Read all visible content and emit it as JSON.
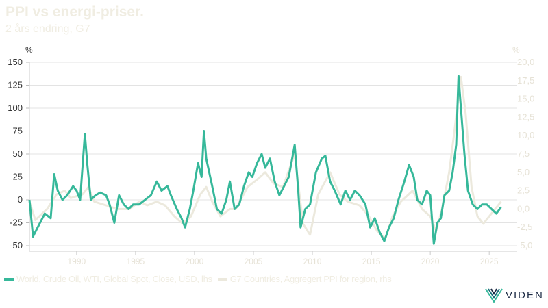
{
  "chart_data": {
    "type": "line",
    "title": "PPI vs energi-priser.",
    "subtitle": "2 års endring, G7",
    "ylabel_left": "%",
    "ylabel_right": "%",
    "ylim_left": [
      -50,
      150
    ],
    "ylim_right": [
      -5,
      20
    ],
    "xlim": [
      1986,
      2026.5
    ],
    "left_ticks": [
      "150",
      "125",
      "100",
      "75",
      "50",
      "25",
      "0",
      "-25",
      "-50"
    ],
    "right_ticks": [
      "20,0",
      "17,5",
      "15,0",
      "12,5",
      "10,0",
      "7,5",
      "5,0",
      "2,5",
      "0,0",
      "-2,5",
      "-5,0"
    ],
    "x_ticks": [
      "1990",
      "1995",
      "2000",
      "2005",
      "2010",
      "2015",
      "2020",
      "2025"
    ],
    "grid": true,
    "legend_position": "bottom",
    "colors": {
      "oil": "#36b89a",
      "ppi": "#ece9dd"
    },
    "series": [
      {
        "name": "World, Crude Oil, WTI, Global Spot, Close, USD, lhs",
        "axis": "left",
        "x": [
          1986.0,
          1986.3,
          1986.7,
          1987.3,
          1987.8,
          1988.1,
          1988.4,
          1988.8,
          1989.2,
          1989.7,
          1990.0,
          1990.3,
          1990.7,
          1990.9,
          1991.2,
          1991.6,
          1992.0,
          1992.5,
          1992.8,
          1993.2,
          1993.6,
          1994.0,
          1994.4,
          1994.8,
          1995.3,
          1995.8,
          1996.3,
          1996.8,
          1997.2,
          1997.7,
          1998.0,
          1998.5,
          1998.9,
          1999.2,
          1999.6,
          1999.9,
          2000.3,
          2000.6,
          2000.8,
          2001.0,
          2001.5,
          2001.9,
          2002.3,
          2002.7,
          2003.0,
          2003.4,
          2003.8,
          2004.2,
          2004.6,
          2004.9,
          2005.3,
          2005.7,
          2006.0,
          2006.4,
          2006.8,
          2007.2,
          2007.6,
          2008.0,
          2008.5,
          2008.8,
          2009.0,
          2009.4,
          2009.8,
          2010.3,
          2010.8,
          2011.1,
          2011.5,
          2011.9,
          2012.4,
          2012.8,
          2013.2,
          2013.6,
          2014.0,
          2014.5,
          2014.9,
          2015.3,
          2015.7,
          2016.1,
          2016.5,
          2016.9,
          2017.3,
          2017.8,
          2018.2,
          2018.6,
          2018.9,
          2019.3,
          2019.7,
          2020.0,
          2020.3,
          2020.6,
          2020.9,
          2021.2,
          2021.6,
          2021.9,
          2022.2,
          2022.4,
          2022.6,
          2022.9,
          2023.2,
          2023.6,
          2024.0,
          2024.4,
          2024.8,
          2025.2,
          2025.6,
          2026.0
        ],
        "values": [
          0,
          -40,
          -30,
          -15,
          -20,
          28,
          10,
          0,
          5,
          15,
          10,
          0,
          72,
          40,
          0,
          5,
          8,
          5,
          -5,
          -25,
          5,
          -5,
          -10,
          -5,
          -5,
          0,
          5,
          20,
          10,
          15,
          5,
          -10,
          -20,
          -30,
          -10,
          10,
          40,
          25,
          75,
          45,
          15,
          -10,
          -15,
          0,
          20,
          -10,
          -5,
          15,
          30,
          25,
          40,
          50,
          35,
          45,
          20,
          5,
          15,
          25,
          60,
          10,
          -30,
          -10,
          -5,
          30,
          45,
          48,
          20,
          10,
          -5,
          10,
          0,
          10,
          5,
          -5,
          -30,
          -20,
          -35,
          -45,
          -30,
          -20,
          0,
          20,
          38,
          25,
          0,
          -5,
          10,
          5,
          -48,
          -25,
          -20,
          5,
          10,
          30,
          60,
          135,
          100,
          50,
          10,
          -5,
          -10,
          -5,
          -5,
          -10,
          -15,
          -8
        ]
      },
      {
        "name": "G7 Countries, Aggregert PPI for region, rhs",
        "axis": "right",
        "x": [
          1986.0,
          1986.5,
          1987.5,
          1988.3,
          1989.0,
          1989.5,
          1990.5,
          1991.0,
          1991.5,
          1992.5,
          1993.5,
          1994.5,
          1995.3,
          1996.0,
          1996.8,
          1997.5,
          1998.3,
          1999.0,
          1999.7,
          2000.5,
          2001.0,
          2001.5,
          2002.2,
          2003.0,
          2003.5,
          2004.5,
          2005.3,
          2006.0,
          2006.7,
          2007.5,
          2008.5,
          2009.2,
          2009.8,
          2010.5,
          2011.5,
          2012.3,
          2013.0,
          2014.0,
          2014.8,
          2015.5,
          2016.2,
          2016.8,
          2017.5,
          2018.5,
          2019.3,
          2020.0,
          2020.5,
          2021.0,
          2021.6,
          2022.0,
          2022.6,
          2023.0,
          2023.5,
          2024.0,
          2024.5,
          2025.0,
          2025.5,
          2026.0
        ],
        "values": [
          1,
          -1.5,
          0,
          2,
          2.5,
          1.5,
          2,
          3,
          1,
          0.5,
          0,
          0,
          1,
          0.5,
          1,
          0.5,
          -1,
          -2,
          -1,
          2,
          3,
          1,
          -1,
          0,
          0,
          3,
          4,
          5,
          3.5,
          3,
          7.5,
          -2,
          -3.5,
          2,
          5,
          2,
          1,
          0.5,
          -1,
          -3,
          -4,
          -1,
          1,
          2.5,
          0,
          -1,
          -3,
          0,
          5,
          10,
          18,
          13,
          3,
          -1,
          -2,
          -1,
          0,
          1
        ]
      }
    ]
  },
  "legend": {
    "oil": "World, Crude Oil, WTI, Global Spot, Close, USD, lhs",
    "ppi": "G7 Countries, Aggregert PPI for region, rhs"
  },
  "logo": {
    "text": "VIDEN"
  }
}
